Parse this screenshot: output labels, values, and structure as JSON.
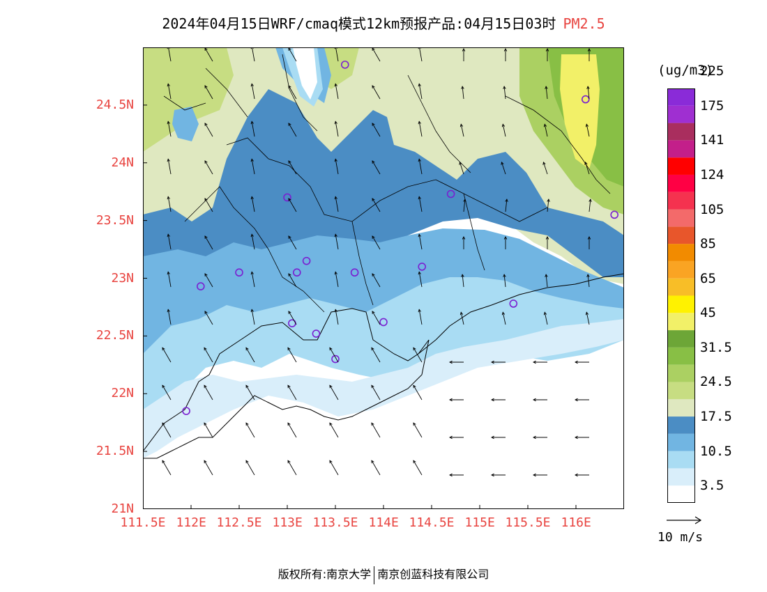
{
  "title": {
    "main": "2024年04月15日WRF/cmaq模式12km预报产品:04月15日03时",
    "variable": "PM2.5"
  },
  "colorbar": {
    "unit": "(ug/m3)",
    "colors": [
      "#ffffff",
      "#d9eefa",
      "#a9dcf3",
      "#71b5e2",
      "#4b8dc4",
      "#dfe8c0",
      "#c7dd82",
      "#abd062",
      "#88bf45",
      "#6da637",
      "#f2f068",
      "#fff200",
      "#f8be27",
      "#faa423",
      "#f28b00",
      "#e8562b",
      "#f36a6a",
      "#f5324f",
      "#ff0044",
      "#ff0000",
      "#c31f8a",
      "#a92e5e",
      "#9f2fd1",
      "#8a2bd8"
    ],
    "labels": [
      "3.5",
      "10.5",
      "17.5",
      "24.5",
      "31.5",
      "45",
      "65",
      "85",
      "105",
      "124",
      "141",
      "175",
      "225"
    ]
  },
  "axes": {
    "lon_labels": [
      "111.5E",
      "112E",
      "112.5E",
      "113E",
      "113.5E",
      "114E",
      "114.5E",
      "115E",
      "115.5E",
      "116E"
    ],
    "lat_labels": [
      "24.5N",
      "24N",
      "23.5N",
      "23N",
      "22.5N",
      "22N",
      "21.5N",
      "21N"
    ]
  },
  "stations": [
    [
      113.6,
      24.85
    ],
    [
      116.1,
      24.55
    ],
    [
      113.0,
      23.7
    ],
    [
      114.7,
      23.73
    ],
    [
      116.4,
      23.55
    ],
    [
      113.2,
      23.15
    ],
    [
      112.5,
      23.05
    ],
    [
      113.1,
      23.05
    ],
    [
      113.7,
      23.05
    ],
    [
      114.4,
      23.1
    ],
    [
      112.1,
      22.93
    ],
    [
      115.35,
      22.78
    ],
    [
      113.05,
      22.61
    ],
    [
      114.0,
      22.62
    ],
    [
      113.3,
      22.52
    ],
    [
      113.5,
      22.3
    ],
    [
      111.95,
      21.85
    ]
  ],
  "wind_reference": {
    "label": "10 m/s"
  },
  "footer": {
    "left": "版权所有:南京大学",
    "right": "南京创蓝科技有限公司"
  }
}
